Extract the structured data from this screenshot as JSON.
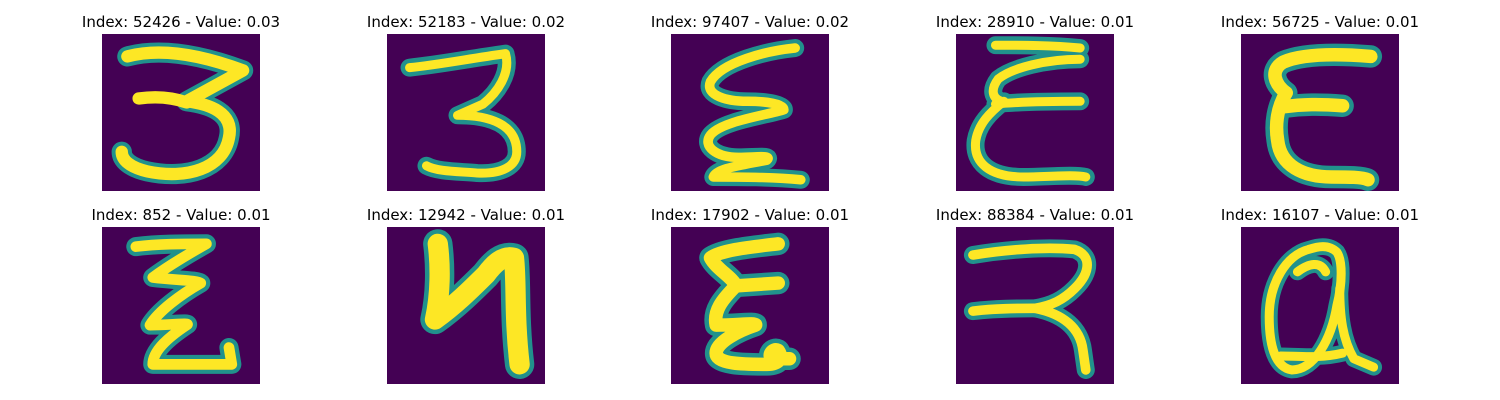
{
  "background_color": "#440154",
  "stroke_edge_color": "#21918c",
  "stroke_core_color": "#fde725",
  "panels": [
    {
      "title": "Index: 52426 - Value: 0.03",
      "glyph": "3-shaped handwritten character"
    },
    {
      "title": "Index: 52183 - Value: 0.02",
      "glyph": "3-shaped handwritten character"
    },
    {
      "title": "Index: 97407 - Value: 0.02",
      "glyph": "zigzag handwritten character"
    },
    {
      "title": "Index: 28910 - Value: 0.01",
      "glyph": "E-shaped handwritten character"
    },
    {
      "title": "Index: 56725 - Value: 0.01",
      "glyph": "E-shaped handwritten character"
    },
    {
      "title": "Index: 852 - Value: 0.01",
      "glyph": "zigzag handwritten character"
    },
    {
      "title": "Index: 12942 - Value: 0.01",
      "glyph": "N-shaped handwritten character"
    },
    {
      "title": "Index: 17902 - Value: 0.01",
      "glyph": "E-shaped handwritten character"
    },
    {
      "title": "Index: 88384 - Value: 0.01",
      "glyph": "reversed-C handwritten character"
    },
    {
      "title": "Index: 16107 - Value: 0.01",
      "glyph": "a-shaped handwritten character"
    }
  ]
}
